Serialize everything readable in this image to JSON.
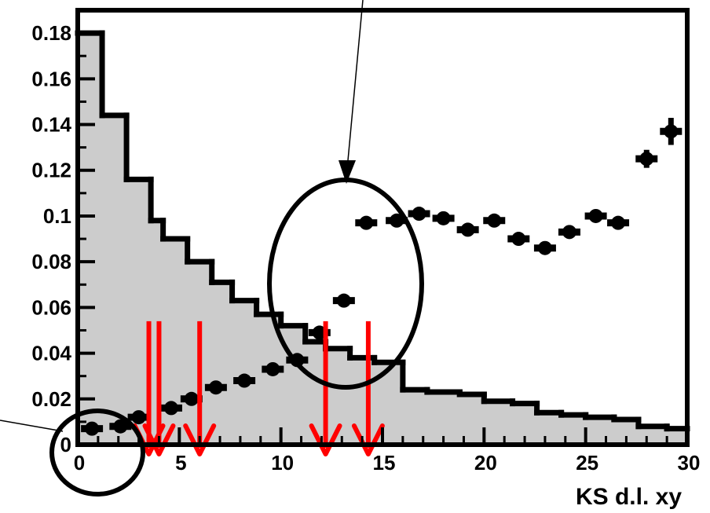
{
  "chart_data": {
    "type": "bar",
    "xlabel": "KS d.l. xy",
    "ylabel": "",
    "xlim": [
      0,
      30
    ],
    "ylim": [
      0,
      0.19
    ],
    "x_ticks": [
      0,
      5,
      10,
      15,
      20,
      25,
      30
    ],
    "x_tick_labels": [
      "0",
      "5",
      "10",
      "15",
      "20",
      "25",
      "30"
    ],
    "y_ticks": [
      0,
      0.02,
      0.04,
      0.06,
      0.08,
      0.1,
      0.12,
      0.14,
      0.16,
      0.18
    ],
    "y_tick_labels": [
      "0",
      "0.02",
      "0.04",
      "0.06",
      "0.08",
      "0.1",
      "0.12",
      "0.14",
      "0.16",
      "0.18"
    ],
    "grid": false,
    "histogram": {
      "bin_edges": [
        0,
        1.2,
        2.4,
        3.6,
        4.2,
        5.4,
        6.6,
        7.6,
        8.8,
        10,
        11.2,
        12.2,
        13.4,
        14.6,
        16,
        17.2,
        18.8,
        20,
        21.4,
        22.6,
        23.8,
        25,
        26.4,
        27.6,
        29,
        30
      ],
      "values": [
        0.18,
        0.144,
        0.116,
        0.098,
        0.09,
        0.08,
        0.071,
        0.063,
        0.057,
        0.052,
        0.045,
        0.042,
        0.038,
        0.036,
        0.024,
        0.023,
        0.022,
        0.019,
        0.018,
        0.014,
        0.013,
        0.012,
        0.011,
        0.008,
        0.007
      ],
      "fill": "#cccccc",
      "line": "#000000"
    },
    "points": {
      "x": [
        0.7,
        2.1,
        3.0,
        4.6,
        5.6,
        6.8,
        8.2,
        9.6,
        10.8,
        11.9,
        13.1,
        14.2,
        15.7,
        16.8,
        18.0,
        19.2,
        20.5,
        21.7,
        23.0,
        24.2,
        25.5,
        26.6,
        28.0,
        29.2
      ],
      "y": [
        0.007,
        0.008,
        0.012,
        0.016,
        0.02,
        0.025,
        0.028,
        0.033,
        0.037,
        0.049,
        0.063,
        0.097,
        0.098,
        0.101,
        0.099,
        0.094,
        0.098,
        0.09,
        0.086,
        0.093,
        0.1,
        0.097,
        0.125,
        0.137
      ],
      "yerr": [
        0.002,
        0.002,
        0.002,
        0.002,
        0.002,
        0.002,
        0.002,
        0.002,
        0.002,
        0.002,
        0.002,
        0.002,
        0.002,
        0.002,
        0.002,
        0.002,
        0.003,
        0.003,
        0.004,
        0.004,
        0.004,
        0.004,
        0.006,
        0.008
      ],
      "color": "#000000"
    },
    "cut_arrows": {
      "x": [
        3.5,
        4.0,
        6.0,
        12.2,
        14.3
      ],
      "y_top": 0.054,
      "y_bottom": 0.0,
      "color": "#ff0000"
    },
    "ellipses": {
      "color": "#000000"
    }
  }
}
